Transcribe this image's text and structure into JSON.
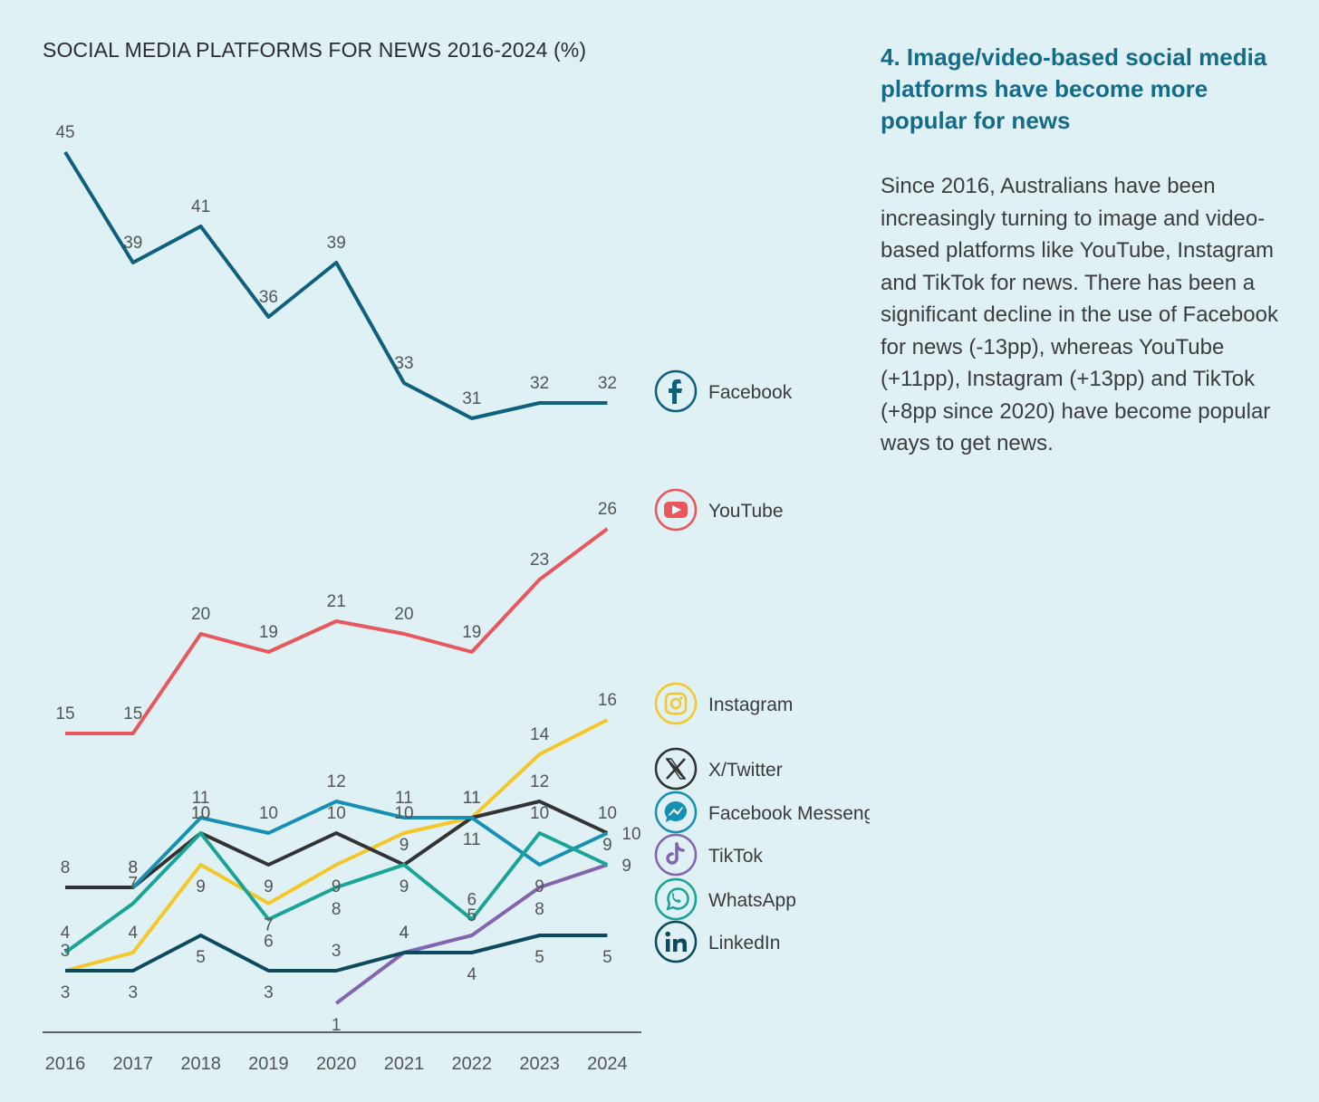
{
  "chart_data": {
    "type": "line",
    "title": "SOCIAL MEDIA PLATFORMS FOR NEWS 2016-2024 (%)",
    "x": [
      "2016",
      "2017",
      "2018",
      "2019",
      "2020",
      "2021",
      "2022",
      "2023",
      "2024"
    ],
    "series": [
      {
        "name": "Facebook",
        "color": "#0f5f7f",
        "icon": "facebook-icon",
        "values": [
          45,
          39,
          41,
          36,
          39,
          33,
          31,
          32,
          32
        ]
      },
      {
        "name": "YouTube",
        "color": "#e8575b",
        "icon": "youtube-icon",
        "values": [
          15,
          15,
          20,
          19,
          21,
          20,
          19,
          23,
          26
        ]
      },
      {
        "name": "Instagram",
        "color": "#f5c728",
        "icon": "instagram-icon",
        "values": [
          3,
          4,
          9,
          7,
          9,
          10,
          11,
          14,
          16
        ]
      },
      {
        "name": "X/Twitter",
        "color": "#333333",
        "icon": "x-twitter-icon",
        "values": [
          8,
          8,
          10,
          9,
          10,
          9,
          11,
          12,
          10
        ]
      },
      {
        "name": "Facebook Messenger",
        "color": "#1690b5",
        "icon": "messenger-icon",
        "values": [
          null,
          8,
          11,
          10,
          12,
          11,
          11,
          9,
          10
        ]
      },
      {
        "name": "TikTok",
        "color": "#8364b0",
        "icon": "tiktok-icon",
        "values": [
          null,
          null,
          null,
          null,
          1,
          4,
          5,
          8,
          9
        ]
      },
      {
        "name": "WhatsApp",
        "color": "#1aa397",
        "icon": "whatsapp-icon",
        "values": [
          4,
          7,
          10,
          6,
          8,
          9,
          6,
          10,
          9
        ]
      },
      {
        "name": "LinkedIn",
        "color": "#0c4a60",
        "icon": "linkedin-icon",
        "values": [
          3,
          3,
          5,
          3,
          3,
          4,
          4,
          5,
          5
        ]
      }
    ],
    "xlabel": "",
    "ylabel": "",
    "grid": false,
    "legend": "right"
  },
  "sidebar": {
    "heading": "4. Image/video-based social media platforms have become more popular for news",
    "body": "Since 2016, Australians have been increasingly turning to image and video-based platforms like YouTube, Instagram and TikTok for news. There has been a significant decline in the use of Facebook for news (-13pp), whereas YouTube (+11pp), Instagram (+13pp) and TikTok (+8pp since 2020) have become popular ways to get news."
  }
}
